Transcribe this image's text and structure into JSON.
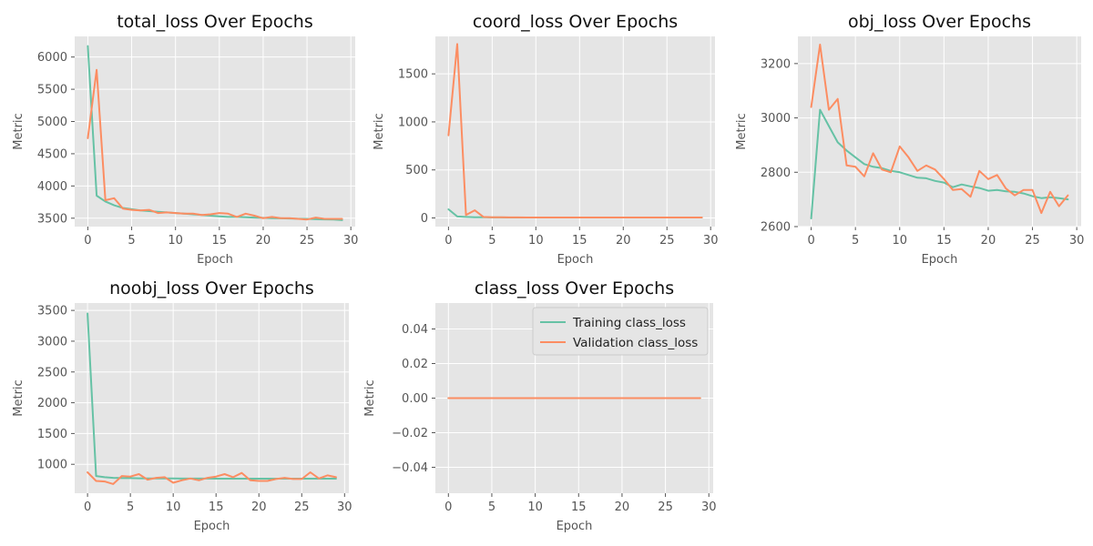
{
  "colors": {
    "training": "#66c2a5",
    "validation": "#fc8d62",
    "background": "#e5e5e5",
    "grid": "#ffffff"
  },
  "chart_data": [
    {
      "type": "line",
      "title": "total_loss Over Epochs",
      "xlabel": "Epoch",
      "ylabel": "Metric",
      "xlim": [
        -1.5,
        30.5
      ],
      "ylim": [
        3370,
        6320
      ],
      "xticks": [
        0,
        5,
        10,
        15,
        20,
        25,
        30
      ],
      "yticks": [
        3500,
        4000,
        4500,
        5000,
        5500,
        6000
      ],
      "grid": true,
      "series": [
        {
          "role": "training",
          "values": [
            6170,
            3850,
            3760,
            3700,
            3660,
            3640,
            3620,
            3610,
            3600,
            3590,
            3580,
            3570,
            3560,
            3550,
            3540,
            3530,
            3520,
            3520,
            3515,
            3510,
            3505,
            3500,
            3498,
            3495,
            3492,
            3490,
            3485,
            3482,
            3480,
            3470
          ]
        },
        {
          "role": "validation",
          "values": [
            4740,
            5800,
            3780,
            3810,
            3650,
            3630,
            3620,
            3630,
            3580,
            3590,
            3580,
            3570,
            3570,
            3550,
            3560,
            3580,
            3570,
            3520,
            3570,
            3540,
            3500,
            3520,
            3500,
            3500,
            3490,
            3480,
            3510,
            3490,
            3490,
            3490
          ]
        }
      ]
    },
    {
      "type": "line",
      "title": "coord_loss Over Epochs",
      "xlabel": "Epoch",
      "ylabel": "Metric",
      "xlim": [
        -1.5,
        30.5
      ],
      "ylim": [
        -90,
        1890
      ],
      "xticks": [
        0,
        5,
        10,
        15,
        20,
        25,
        30
      ],
      "yticks": [
        0,
        500,
        1000,
        1500
      ],
      "grid": true,
      "series": [
        {
          "role": "training",
          "values": [
            90,
            15,
            10,
            8,
            7,
            6,
            6,
            5,
            5,
            5,
            5,
            5,
            5,
            5,
            5,
            5,
            5,
            5,
            5,
            5,
            5,
            5,
            5,
            5,
            5,
            5,
            5,
            5,
            5,
            5
          ]
        },
        {
          "role": "validation",
          "values": [
            860,
            1810,
            30,
            80,
            10,
            8,
            7,
            6,
            6,
            5,
            5,
            5,
            5,
            5,
            5,
            5,
            5,
            5,
            5,
            5,
            5,
            5,
            5,
            5,
            5,
            5,
            5,
            5,
            5,
            5
          ]
        }
      ]
    },
    {
      "type": "line",
      "title": "obj_loss Over Epochs",
      "xlabel": "Epoch",
      "ylabel": "Metric",
      "xlim": [
        -1.5,
        30.5
      ],
      "ylim": [
        2600,
        3300
      ],
      "xticks": [
        0,
        5,
        10,
        15,
        20,
        25,
        30
      ],
      "yticks": [
        2600,
        2800,
        3000,
        3200
      ],
      "grid": true,
      "series": [
        {
          "role": "training",
          "values": [
            2630,
            3030,
            2970,
            2910,
            2880,
            2855,
            2830,
            2820,
            2815,
            2805,
            2800,
            2790,
            2780,
            2778,
            2768,
            2762,
            2745,
            2755,
            2748,
            2742,
            2732,
            2735,
            2730,
            2728,
            2722,
            2712,
            2705,
            2708,
            2705,
            2700
          ]
        },
        {
          "role": "validation",
          "values": [
            3040,
            3270,
            3030,
            3070,
            2825,
            2820,
            2785,
            2870,
            2810,
            2800,
            2895,
            2855,
            2805,
            2825,
            2810,
            2775,
            2735,
            2738,
            2710,
            2805,
            2775,
            2790,
            2740,
            2715,
            2735,
            2735,
            2650,
            2728,
            2675,
            2715
          ]
        }
      ]
    },
    {
      "type": "line",
      "title": "noobj_loss Over Epochs",
      "xlabel": "Epoch",
      "ylabel": "Metric",
      "xlim": [
        -1.5,
        30.5
      ],
      "ylim": [
        530,
        3620
      ],
      "xticks": [
        0,
        5,
        10,
        15,
        20,
        25,
        30
      ],
      "yticks": [
        1000,
        1500,
        2000,
        2500,
        3000,
        3500
      ],
      "grid": true,
      "series": [
        {
          "role": "training",
          "values": [
            3450,
            810,
            790,
            780,
            775,
            775,
            772,
            770,
            770,
            770,
            770,
            768,
            768,
            768,
            768,
            766,
            766,
            766,
            766,
            766,
            766,
            766,
            766,
            766,
            766,
            766,
            766,
            766,
            766,
            766
          ]
        },
        {
          "role": "validation",
          "values": [
            870,
            730,
            720,
            680,
            810,
            800,
            840,
            750,
            780,
            790,
            700,
            740,
            770,
            740,
            780,
            800,
            840,
            790,
            860,
            740,
            730,
            730,
            760,
            780,
            760,
            760,
            870,
            770,
            820,
            790
          ]
        }
      ]
    },
    {
      "type": "line",
      "title": "class_loss Over Epochs",
      "xlabel": "Epoch",
      "ylabel": "Metric",
      "xlim": [
        -1.5,
        30.5
      ],
      "ylim": [
        -0.055,
        0.055
      ],
      "xticks": [
        0,
        5,
        10,
        15,
        20,
        25,
        30
      ],
      "yticks": [
        -0.04,
        -0.02,
        0.0,
        0.02,
        0.04
      ],
      "ytick_labels": [
        "−0.04",
        "−0.02",
        "0.00",
        "0.02",
        "0.04"
      ],
      "grid": true,
      "legend": {
        "location": "top-right",
        "entries": [
          "Training class_loss",
          "Validation class_loss"
        ]
      },
      "series": [
        {
          "role": "training",
          "values": [
            0,
            0,
            0,
            0,
            0,
            0,
            0,
            0,
            0,
            0,
            0,
            0,
            0,
            0,
            0,
            0,
            0,
            0,
            0,
            0,
            0,
            0,
            0,
            0,
            0,
            0,
            0,
            0,
            0,
            0
          ]
        },
        {
          "role": "validation",
          "values": [
            0,
            0,
            0,
            0,
            0,
            0,
            0,
            0,
            0,
            0,
            0,
            0,
            0,
            0,
            0,
            0,
            0,
            0,
            0,
            0,
            0,
            0,
            0,
            0,
            0,
            0,
            0,
            0,
            0,
            0
          ]
        }
      ]
    }
  ]
}
